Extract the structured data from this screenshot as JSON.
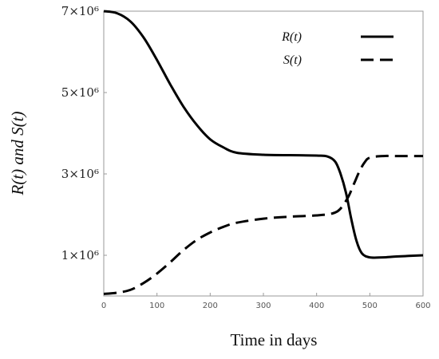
{
  "chart_data": {
    "type": "line",
    "xlabel": "Time in days",
    "ylabel": "R(t)  and  S(t)",
    "xlim": [
      0,
      600
    ],
    "ylim": [
      0,
      7000000
    ],
    "x_ticks": [
      0,
      100,
      200,
      300,
      400,
      500,
      600
    ],
    "x_tick_labels": [
      "0",
      "100",
      "200",
      "300",
      "400",
      "500",
      "600"
    ],
    "y_ticks": [
      1000000,
      3000000,
      5000000,
      7000000
    ],
    "y_tick_labels": [
      "1×10⁶",
      "3×10⁶",
      "5×10⁶",
      "7×10⁶"
    ],
    "legend_position": "top-right",
    "series": [
      {
        "name": "R(t)",
        "style": "solid",
        "x": [
          0,
          25,
          50,
          75,
          100,
          125,
          150,
          175,
          200,
          225,
          250,
          300,
          350,
          400,
          420,
          435,
          445,
          455,
          465,
          475,
          485,
          500,
          525,
          550,
          600
        ],
        "y": [
          7000000,
          6950000,
          6750000,
          6350000,
          5800000,
          5200000,
          4650000,
          4200000,
          3850000,
          3650000,
          3520000,
          3470000,
          3460000,
          3450000,
          3430000,
          3300000,
          3000000,
          2550000,
          1900000,
          1350000,
          1050000,
          950000,
          950000,
          970000,
          1000000
        ]
      },
      {
        "name": "S(t)",
        "style": "dashed",
        "x": [
          0,
          25,
          50,
          75,
          100,
          125,
          150,
          175,
          200,
          225,
          250,
          300,
          350,
          400,
          430,
          445,
          460,
          470,
          480,
          490,
          500,
          525,
          550,
          600
        ],
        "y": [
          50000,
          80000,
          150000,
          320000,
          550000,
          830000,
          1130000,
          1380000,
          1560000,
          1700000,
          1800000,
          1900000,
          1950000,
          1980000,
          2030000,
          2150000,
          2450000,
          2750000,
          3050000,
          3280000,
          3400000,
          3440000,
          3440000,
          3440000
        ]
      }
    ]
  }
}
